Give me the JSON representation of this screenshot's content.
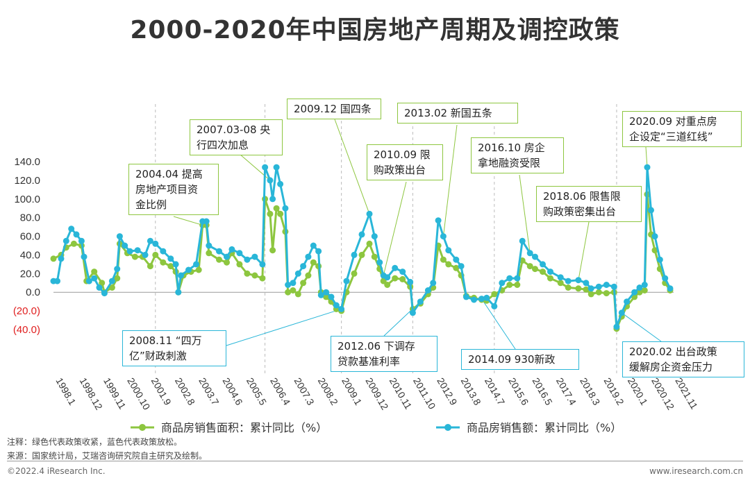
{
  "title": "2000-2020年中国房地产周期及调控政策",
  "chart_data": {
    "type": "line",
    "title": "2000-2020年中国房地产周期及调控政策",
    "ylim": [
      -40,
      140
    ],
    "y_ticks": [
      "140.0",
      "120.0",
      "100.0",
      "80.0",
      "60.0",
      "40.0",
      "20.0",
      "0.0",
      "(20.0)",
      "(40.0)"
    ],
    "x_tick_labels": [
      "1998.1",
      "1998.12",
      "1999.11",
      "2000.10",
      "2001.9",
      "2002.8",
      "2003.7",
      "2004.6",
      "2005.5",
      "2006.4",
      "2007.3",
      "2008.2",
      "2009.1",
      "2009.12",
      "2010.11",
      "2011.10",
      "2012.9",
      "2013.8",
      "2014.7",
      "2015.6",
      "2016.5",
      "2017.4",
      "2018.3",
      "2019.2",
      "2020.1",
      "2020.12",
      "2021.11"
    ],
    "series": [
      {
        "name": "商品房销售面积：累计同比（%）",
        "color": "#8dc63f",
        "points": [
          [
            1998.0,
            36
          ],
          [
            1998.3,
            40
          ],
          [
            1998.5,
            48
          ],
          [
            1998.8,
            52
          ],
          [
            1999.1,
            50
          ],
          [
            1999.3,
            12
          ],
          [
            1999.6,
            22
          ],
          [
            1999.9,
            10
          ],
          [
            2000.0,
            0
          ],
          [
            2000.3,
            5
          ],
          [
            2000.5,
            15
          ],
          [
            2000.6,
            52
          ],
          [
            2000.9,
            42
          ],
          [
            2001.2,
            38
          ],
          [
            2001.5,
            38
          ],
          [
            2001.8,
            28
          ],
          [
            2002.0,
            40
          ],
          [
            2002.3,
            32
          ],
          [
            2002.6,
            28
          ],
          [
            2002.8,
            22
          ],
          [
            2002.9,
            0
          ],
          [
            2003.1,
            18
          ],
          [
            2003.4,
            22
          ],
          [
            2003.7,
            24
          ],
          [
            2003.85,
            72
          ],
          [
            2004.0,
            72
          ],
          [
            2004.1,
            42
          ],
          [
            2004.5,
            35
          ],
          [
            2004.8,
            32
          ],
          [
            2005.0,
            42
          ],
          [
            2005.3,
            30
          ],
          [
            2005.6,
            20
          ],
          [
            2005.9,
            18
          ],
          [
            2006.2,
            15
          ],
          [
            2006.3,
            100
          ],
          [
            2006.5,
            84
          ],
          [
            2006.6,
            45
          ],
          [
            2006.75,
            90
          ],
          [
            2006.9,
            84
          ],
          [
            2007.1,
            65
          ],
          [
            2007.2,
            0
          ],
          [
            2007.4,
            2
          ],
          [
            2007.6,
            -2
          ],
          [
            2007.8,
            10
          ],
          [
            2008.0,
            18
          ],
          [
            2008.2,
            32
          ],
          [
            2008.4,
            28
          ],
          [
            2008.5,
            0
          ],
          [
            2008.7,
            -5
          ],
          [
            2008.9,
            -10
          ],
          [
            2009.1,
            -18
          ],
          [
            2009.3,
            -20
          ],
          [
            2009.5,
            0
          ],
          [
            2009.8,
            20
          ],
          [
            2010.1,
            40
          ],
          [
            2010.4,
            52
          ],
          [
            2010.6,
            38
          ],
          [
            2010.8,
            25
          ],
          [
            2010.95,
            12
          ],
          [
            2011.1,
            8
          ],
          [
            2011.4,
            15
          ],
          [
            2011.7,
            14
          ],
          [
            2012.0,
            6
          ],
          [
            2012.1,
            -18
          ],
          [
            2012.4,
            -12
          ],
          [
            2012.7,
            -2
          ],
          [
            2012.9,
            5
          ],
          [
            2013.1,
            50
          ],
          [
            2013.3,
            35
          ],
          [
            2013.5,
            30
          ],
          [
            2013.8,
            26
          ],
          [
            2014.0,
            18
          ],
          [
            2014.2,
            -4
          ],
          [
            2014.5,
            -6
          ],
          [
            2014.8,
            -8
          ],
          [
            2015.0,
            -9
          ],
          [
            2015.3,
            -2
          ],
          [
            2015.6,
            2
          ],
          [
            2015.9,
            8
          ],
          [
            2016.2,
            8
          ],
          [
            2016.4,
            34
          ],
          [
            2016.7,
            28
          ],
          [
            2016.9,
            25
          ],
          [
            2017.2,
            22
          ],
          [
            2017.5,
            15
          ],
          [
            2017.9,
            10
          ],
          [
            2018.2,
            5
          ],
          [
            2018.6,
            4
          ],
          [
            2018.9,
            3
          ],
          [
            2019.1,
            -2
          ],
          [
            2019.4,
            0
          ],
          [
            2019.7,
            -1
          ],
          [
            2020.0,
            0
          ],
          [
            2020.1,
            -39
          ],
          [
            2020.3,
            -26
          ],
          [
            2020.5,
            -15
          ],
          [
            2020.8,
            -5
          ],
          [
            2021.0,
            0
          ],
          [
            2021.2,
            2
          ],
          [
            2021.3,
            105
          ],
          [
            2021.45,
            62
          ],
          [
            2021.6,
            45
          ],
          [
            2021.8,
            25
          ],
          [
            2022.0,
            10
          ],
          [
            2022.2,
            2
          ]
        ]
      },
      {
        "name": "商品房销售额：累计同比（%）",
        "color": "#29b6d8",
        "points": [
          [
            1998.0,
            12
          ],
          [
            1998.15,
            12
          ],
          [
            1998.3,
            36
          ],
          [
            1998.5,
            55
          ],
          [
            1998.7,
            68
          ],
          [
            1998.9,
            62
          ],
          [
            1999.1,
            55
          ],
          [
            1999.2,
            38
          ],
          [
            1999.4,
            12
          ],
          [
            1999.6,
            15
          ],
          [
            1999.8,
            5
          ],
          [
            2000.0,
            -1
          ],
          [
            2000.3,
            12
          ],
          [
            2000.5,
            25
          ],
          [
            2000.6,
            60
          ],
          [
            2000.8,
            50
          ],
          [
            2001.0,
            44
          ],
          [
            2001.3,
            45
          ],
          [
            2001.6,
            40
          ],
          [
            2001.8,
            55
          ],
          [
            2002.0,
            52
          ],
          [
            2002.3,
            44
          ],
          [
            2002.6,
            36
          ],
          [
            2002.8,
            30
          ],
          [
            2002.9,
            0
          ],
          [
            2003.0,
            18
          ],
          [
            2003.3,
            24
          ],
          [
            2003.6,
            30
          ],
          [
            2003.85,
            76
          ],
          [
            2004.0,
            76
          ],
          [
            2004.1,
            50
          ],
          [
            2004.5,
            44
          ],
          [
            2004.8,
            38
          ],
          [
            2005.0,
            46
          ],
          [
            2005.3,
            42
          ],
          [
            2005.6,
            35
          ],
          [
            2005.9,
            38
          ],
          [
            2006.2,
            30
          ],
          [
            2006.3,
            134
          ],
          [
            2006.5,
            120
          ],
          [
            2006.6,
            100
          ],
          [
            2006.75,
            134
          ],
          [
            2006.9,
            116
          ],
          [
            2007.1,
            90
          ],
          [
            2007.2,
            8
          ],
          [
            2007.4,
            10
          ],
          [
            2007.6,
            20
          ],
          [
            2007.8,
            28
          ],
          [
            2008.0,
            38
          ],
          [
            2008.2,
            50
          ],
          [
            2008.4,
            44
          ],
          [
            2008.5,
            -3
          ],
          [
            2008.7,
            0
          ],
          [
            2008.9,
            -5
          ],
          [
            2009.1,
            -14
          ],
          [
            2009.3,
            -18
          ],
          [
            2009.5,
            12
          ],
          [
            2009.8,
            40
          ],
          [
            2010.1,
            62
          ],
          [
            2010.4,
            84
          ],
          [
            2010.6,
            60
          ],
          [
            2010.8,
            32
          ],
          [
            2010.95,
            18
          ],
          [
            2011.1,
            16
          ],
          [
            2011.4,
            26
          ],
          [
            2011.7,
            22
          ],
          [
            2012.0,
            11
          ],
          [
            2012.1,
            -22
          ],
          [
            2012.4,
            -10
          ],
          [
            2012.7,
            2
          ],
          [
            2012.9,
            10
          ],
          [
            2013.1,
            77
          ],
          [
            2013.3,
            60
          ],
          [
            2013.5,
            45
          ],
          [
            2013.8,
            35
          ],
          [
            2014.0,
            28
          ],
          [
            2014.2,
            -5
          ],
          [
            2014.5,
            -8
          ],
          [
            2014.8,
            -7
          ],
          [
            2015.0,
            -6
          ],
          [
            2015.3,
            -15
          ],
          [
            2015.6,
            10
          ],
          [
            2015.9,
            15
          ],
          [
            2016.2,
            15
          ],
          [
            2016.4,
            55
          ],
          [
            2016.7,
            42
          ],
          [
            2016.9,
            38
          ],
          [
            2017.2,
            30
          ],
          [
            2017.5,
            22
          ],
          [
            2017.9,
            16
          ],
          [
            2018.2,
            12
          ],
          [
            2018.6,
            13
          ],
          [
            2018.9,
            10
          ],
          [
            2019.1,
            4
          ],
          [
            2019.4,
            6
          ],
          [
            2019.7,
            8
          ],
          [
            2020.0,
            6
          ],
          [
            2020.1,
            -37
          ],
          [
            2020.3,
            -22
          ],
          [
            2020.5,
            -10
          ],
          [
            2020.8,
            0
          ],
          [
            2021.0,
            5
          ],
          [
            2021.2,
            8
          ],
          [
            2021.3,
            134
          ],
          [
            2021.45,
            88
          ],
          [
            2021.6,
            60
          ],
          [
            2021.8,
            35
          ],
          [
            2022.0,
            15
          ],
          [
            2022.2,
            4
          ]
        ]
      }
    ],
    "annotations": [
      {
        "text": "2004.04 提高房地产项目资金比例",
        "color": "green"
      },
      {
        "text": "2007.03-08 央行四次加息",
        "color": "green"
      },
      {
        "text": "2009.12 国四条",
        "color": "green"
      },
      {
        "text": "2010.09 限购政策出台",
        "color": "green"
      },
      {
        "text": "2013.02 新国五条",
        "color": "green"
      },
      {
        "text": "2016.10 房企拿地融资受限",
        "color": "green"
      },
      {
        "text": "2018.06 限售限购政策密集出台",
        "color": "green"
      },
      {
        "text": "2020.09 对重点房企设定“三道红线”",
        "color": "green"
      },
      {
        "text": "2008.11 “四万亿”财政刺激",
        "color": "blue"
      },
      {
        "text": "2012.06 下调存贷款基准利率",
        "color": "blue"
      },
      {
        "text": "2014.09 930新政",
        "color": "blue"
      },
      {
        "text": "2020.02 出台政策缓解房企资金压力",
        "color": "blue"
      }
    ]
  },
  "callouts": {
    "c2004": [
      "2004.04 提高",
      "房地产项目资",
      "金比例"
    ],
    "c2007": [
      "2007.03-08 央",
      "行四次加息"
    ],
    "c2009": [
      "2009.12 国四条"
    ],
    "c2010": [
      "2010.09 限",
      "购政策出台"
    ],
    "c2013": [
      "2013.02 新国五条"
    ],
    "c2016": [
      "2016.10 房企",
      "拿地融资受限"
    ],
    "c2018": [
      "2018.06 限售限",
      "购政策密集出台"
    ],
    "c2020a": [
      "2020.09 对重点房",
      "企设定“三道红线”"
    ],
    "c2008": [
      "2008.11 “四万",
      "亿”财政刺激"
    ],
    "c2012": [
      "2012.06 下调存",
      "贷款基准利率"
    ],
    "c2014": [
      "2014.09 930新政"
    ],
    "c2020b": [
      "2020.02 出台政策",
      "缓解房企资金压力"
    ]
  },
  "legend": {
    "area": "商品房销售面积：累计同比（%）",
    "amount": "商品房销售额：累计同比（%）"
  },
  "footer": {
    "note": "注释：绿色代表政策收紧，蓝色代表政策放松。",
    "source": "来源：国家统计局，艾瑞咨询研究院自主研究及绘制。",
    "copyright": "©2022.4 iResearch Inc.",
    "site": "www.iresearch.com.cn"
  }
}
